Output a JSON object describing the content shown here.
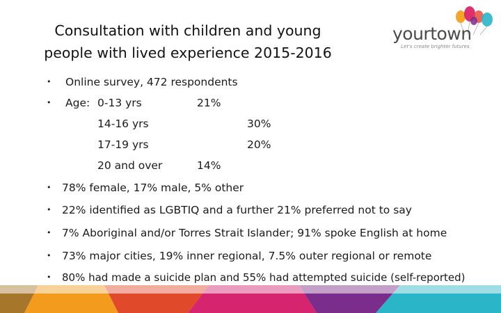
{
  "slide": {
    "title_line1": "Consultation with children and young",
    "title_line2": "people with lived experience  2015-2016"
  },
  "logo": {
    "word": "yourtown",
    "tagline": "Let's create brighter futures",
    "colors": [
      "#f39c12",
      "#e74c3c",
      "#d81b60",
      "#7b2d8b",
      "#2bb5c9"
    ]
  },
  "content": {
    "survey": "Online survey, 472 respondents",
    "age_label": "Age:",
    "age_groups": [
      {
        "label": "0-13 yrs",
        "value": "21%"
      },
      {
        "label": "14-16 yrs",
        "value": "30%"
      },
      {
        "label": "17-19 yrs",
        "value": "20%"
      },
      {
        "label": "20 and over",
        "value": "14%"
      }
    ],
    "points": [
      "78% female, 17% male, 5% other",
      "22% identified as LGBTIQ and a further 21% preferred not to say",
      "7% Aboriginal and/or Torres Strait Islander; 91% spoke English at home",
      "73% major cities, 19% inner regional, 7.5% outer regional or remote",
      "80% had made a suicide plan and 55% had attempted suicide (self-reported)"
    ]
  },
  "footer": {
    "band_colors": [
      "#a6762a",
      "#f29b1d",
      "#e04a2b",
      "#d6246f",
      "#7b2d8b",
      "#2bb5c9"
    ]
  }
}
